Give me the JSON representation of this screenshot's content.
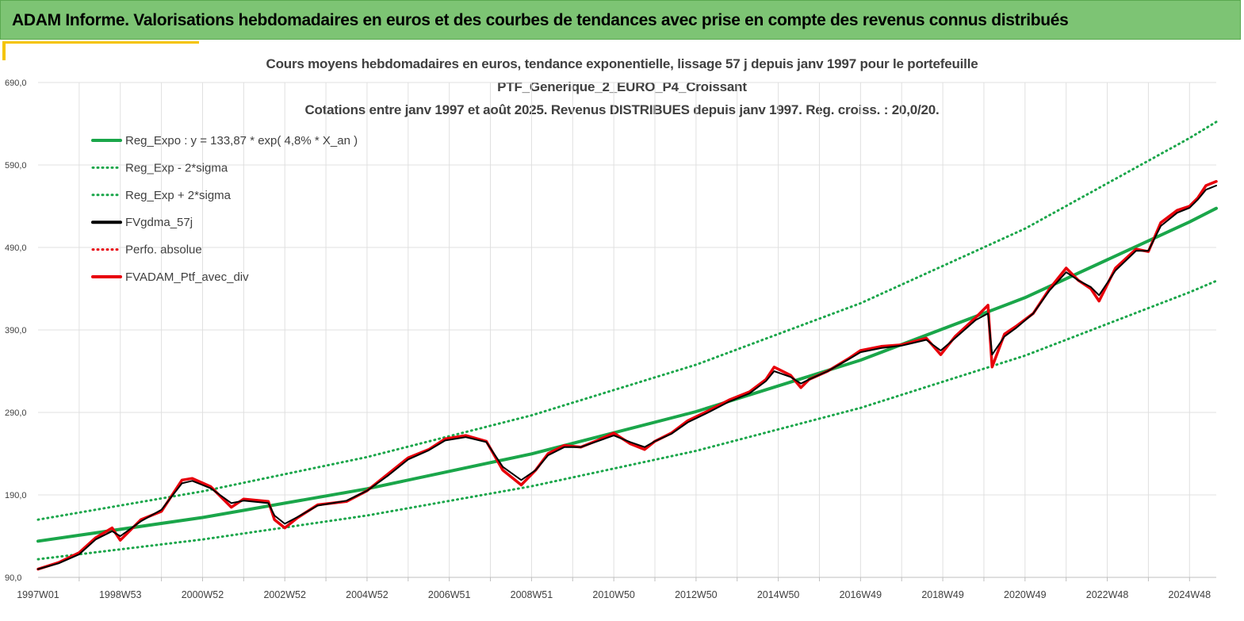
{
  "banner": {
    "title": "ADAM Informe. Valorisations hebdomadaires en euros et des courbes de tendances avec prise en compte des revenus connus distribués"
  },
  "colors": {
    "banner_bg": "#7dc474",
    "accent": "#f5c400",
    "trend_green": "#1aa64a",
    "smoothed_black": "#000000",
    "portfolio_red": "#e8000b",
    "grid": "#e0e0e0"
  },
  "chart_data": {
    "type": "line",
    "title_lines": [
      "Cours moyens hebdomadaires  en euros, tendance exponentielle, lissage 57 j depuis janv 1997 pour le portefeuille",
      "PTF_Generique_2_EURO_P4_Croissant",
      "Cotations  entre janv 1997 et août  2025. Revenus DISTRIBUES depuis janv 1997. Reg. croiss. : 20,0/20."
    ],
    "xlabel": "",
    "ylabel": "",
    "ylim": [
      90,
      690
    ],
    "xlim": [
      1997.0,
      2025.65
    ],
    "y_ticks": [
      "90,0",
      "190,0",
      "290,0",
      "390,0",
      "490,0",
      "590,0",
      "690,0"
    ],
    "x_ticks": [
      {
        "label": "1997W01",
        "year": 1997.0
      },
      {
        "label": "1998W53",
        "year": 1999.0
      },
      {
        "label": "2000W52",
        "year": 2001.0
      },
      {
        "label": "2002W52",
        "year": 2003.0
      },
      {
        "label": "2004W52",
        "year": 2005.0
      },
      {
        "label": "2006W51",
        "year": 2007.0
      },
      {
        "label": "2008W51",
        "year": 2009.0
      },
      {
        "label": "2010W50",
        "year": 2011.0
      },
      {
        "label": "2012W50",
        "year": 2013.0
      },
      {
        "label": "2014W50",
        "year": 2015.0
      },
      {
        "label": "2016W49",
        "year": 2017.0
      },
      {
        "label": "2018W49",
        "year": 2019.0
      },
      {
        "label": "2020W49",
        "year": 2021.0
      },
      {
        "label": "2022W48",
        "year": 2023.0
      },
      {
        "label": "2024W48",
        "year": 2025.0
      }
    ],
    "grid": true,
    "legend_position": "top-left",
    "legend": [
      {
        "label": "Reg_Expo : y = 133,87 * exp( 4,8% *  X_an )",
        "color": "#1aa64a",
        "style": "solid"
      },
      {
        "label": "Reg_Exp - 2*sigma",
        "color": "#1aa64a",
        "style": "dotted"
      },
      {
        "label": "Reg_Exp + 2*sigma",
        "color": "#1aa64a",
        "style": "dotted"
      },
      {
        "label": "FVgdma_57j",
        "color": "#000000",
        "style": "solid"
      },
      {
        "label": "Perfo. absolue",
        "color": "#e8000b",
        "style": "dotted"
      },
      {
        "label": "FVADAM_Ptf_avec_div",
        "color": "#e8000b",
        "style": "solid-thick"
      }
    ],
    "series": [
      {
        "name": "Reg_Expo : y = 133,87 * exp( 4,8% *  X_an )",
        "x": [
          1997.0,
          2001.0,
          2005.0,
          2009.0,
          2013.0,
          2017.0,
          2021.0,
          2025.0,
          2025.65
        ],
        "values": [
          133.9,
          162.6,
          197.4,
          239.7,
          291.0,
          353.4,
          429.1,
          521.0,
          537.4
        ]
      },
      {
        "name": "Reg_Exp - 2*sigma",
        "x": [
          1997.0,
          2001.0,
          2005.0,
          2009.0,
          2013.0,
          2017.0,
          2021.0,
          2025.0,
          2025.65
        ],
        "values": [
          112.0,
          136.0,
          165.0,
          200.5,
          243.4,
          295.5,
          358.8,
          435.7,
          449.4
        ]
      },
      {
        "name": "Reg_Exp + 2*sigma",
        "x": [
          1997.0,
          2001.0,
          2005.0,
          2009.0,
          2013.0,
          2017.0,
          2021.0,
          2025.0,
          2025.65
        ],
        "values": [
          160.0,
          194.3,
          235.9,
          286.4,
          347.8,
          422.3,
          512.8,
          622.6,
          642.2
        ]
      },
      {
        "name": "FVADAM_Ptf_avec_div",
        "x": [
          1997.0,
          1997.5,
          1998.0,
          1998.4,
          1998.8,
          1999.0,
          1999.5,
          2000.0,
          2000.5,
          2000.75,
          2001.2,
          2001.7,
          2002.0,
          2002.6,
          2002.75,
          2003.0,
          2003.3,
          2003.8,
          2004.5,
          2005.0,
          2005.5,
          2006.0,
          2006.5,
          2006.9,
          2007.4,
          2007.9,
          2008.3,
          2008.75,
          2009.1,
          2009.4,
          2009.8,
          2010.2,
          2010.6,
          2011.0,
          2011.4,
          2011.75,
          2012.0,
          2012.4,
          2012.8,
          2013.3,
          2013.8,
          2014.3,
          2014.7,
          2014.9,
          2015.3,
          2015.55,
          2015.75,
          2016.2,
          2016.7,
          2017.0,
          2017.5,
          2018.0,
          2018.6,
          2018.95,
          2019.3,
          2019.8,
          2020.1,
          2020.2,
          2020.5,
          2020.8,
          2021.2,
          2021.6,
          2022.0,
          2022.3,
          2022.6,
          2022.8,
          2023.2,
          2023.7,
          2024.0,
          2024.3,
          2024.7,
          2025.0,
          2025.2,
          2025.4,
          2025.65
        ],
        "values": [
          100,
          108,
          120,
          138,
          150,
          135,
          160,
          170,
          208,
          210,
          200,
          175,
          185,
          182,
          160,
          150,
          162,
          178,
          182,
          195,
          215,
          235,
          245,
          258,
          262,
          255,
          220,
          202,
          220,
          240,
          250,
          248,
          256,
          265,
          252,
          245,
          255,
          265,
          280,
          292,
          305,
          315,
          330,
          345,
          335,
          320,
          330,
          340,
          355,
          365,
          370,
          372,
          380,
          360,
          382,
          405,
          420,
          345,
          385,
          395,
          410,
          440,
          465,
          450,
          440,
          425,
          465,
          488,
          485,
          520,
          535,
          540,
          550,
          565,
          570
        ]
      },
      {
        "name": "FVgdma_57j",
        "x": [
          1997.0,
          1997.5,
          1998.0,
          1998.4,
          1998.8,
          1999.0,
          1999.5,
          2000.0,
          2000.5,
          2000.75,
          2001.2,
          2001.7,
          2002.0,
          2002.6,
          2002.75,
          2003.0,
          2003.3,
          2003.8,
          2004.5,
          2005.0,
          2005.5,
          2006.0,
          2006.5,
          2006.9,
          2007.4,
          2007.9,
          2008.3,
          2008.75,
          2009.1,
          2009.4,
          2009.8,
          2010.2,
          2010.6,
          2011.0,
          2011.4,
          2011.75,
          2012.0,
          2012.4,
          2012.8,
          2013.3,
          2013.8,
          2014.3,
          2014.7,
          2014.9,
          2015.3,
          2015.55,
          2015.75,
          2016.2,
          2016.7,
          2017.0,
          2017.5,
          2018.0,
          2018.6,
          2018.95,
          2019.3,
          2019.8,
          2020.1,
          2020.2,
          2020.5,
          2020.8,
          2021.2,
          2021.6,
          2022.0,
          2022.3,
          2022.6,
          2022.8,
          2023.2,
          2023.7,
          2024.0,
          2024.3,
          2024.7,
          2025.0,
          2025.2,
          2025.4,
          2025.65
        ],
        "values": [
          100,
          107,
          118,
          136,
          146,
          140,
          158,
          172,
          204,
          207,
          198,
          180,
          183,
          180,
          165,
          155,
          163,
          177,
          183,
          195,
          213,
          233,
          244,
          256,
          260,
          254,
          224,
          208,
          220,
          238,
          248,
          248,
          255,
          262,
          254,
          248,
          255,
          264,
          278,
          290,
          303,
          313,
          328,
          340,
          333,
          325,
          330,
          340,
          354,
          363,
          368,
          371,
          378,
          365,
          380,
          402,
          410,
          360,
          382,
          393,
          410,
          438,
          460,
          450,
          442,
          432,
          462,
          486,
          486,
          516,
          532,
          538,
          548,
          560,
          565
        ]
      }
    ]
  }
}
